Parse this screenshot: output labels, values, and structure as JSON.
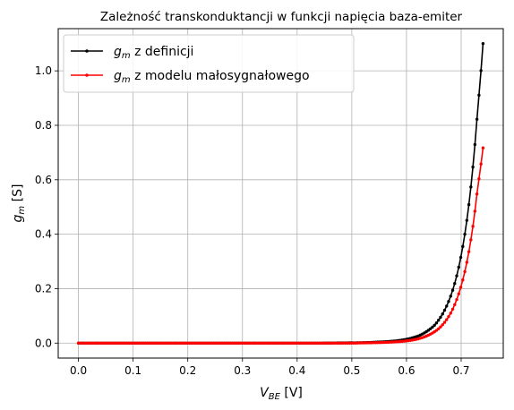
{
  "chart_data": {
    "type": "line",
    "title": "Zależność transkonduktancji w funkcji napięcia baza-emiter",
    "xlabel": {
      "base": "V",
      "sub": "BE",
      "unit": " [V]"
    },
    "ylabel": {
      "base": "g",
      "sub": "m",
      "unit": " [S]"
    },
    "xlim": [
      -0.037,
      0.777
    ],
    "ylim": [
      -0.055,
      1.155
    ],
    "xticks": [
      0.0,
      0.1,
      0.2,
      0.3,
      0.4,
      0.5,
      0.6,
      0.7
    ],
    "xtick_labels": [
      "0.0",
      "0.1",
      "0.2",
      "0.3",
      "0.4",
      "0.5",
      "0.6",
      "0.7"
    ],
    "yticks": [
      0.0,
      0.2,
      0.4,
      0.6,
      0.8,
      1.0
    ],
    "ytick_labels": [
      "0.0",
      "0.2",
      "0.4",
      "0.6",
      "0.8",
      "1.0"
    ],
    "grid": true,
    "legend_position": "top-left",
    "x": [
      0.0,
      0.05,
      0.1,
      0.15,
      0.2,
      0.25,
      0.3,
      0.35,
      0.4,
      0.45,
      0.5,
      0.55,
      0.575,
      0.6,
      0.62,
      0.64,
      0.65,
      0.66,
      0.67,
      0.68,
      0.69,
      0.7,
      0.71,
      0.72,
      0.73,
      0.74
    ],
    "series": [
      {
        "name_base": "g",
        "name_sub": "m",
        "name_rest": " z definicji",
        "color": "#000000",
        "values": [
          0.0,
          0.0,
          0.0,
          0.0,
          0.0,
          0.0,
          0.0,
          0.0,
          0.0,
          0.0,
          0.001,
          0.004,
          0.007,
          0.014,
          0.025,
          0.047,
          0.063,
          0.088,
          0.122,
          0.168,
          0.232,
          0.322,
          0.445,
          0.616,
          0.852,
          1.1
        ]
      },
      {
        "name_base": "g",
        "name_sub": "m",
        "name_rest": " z modelu małosygnałowego",
        "color": "#ff0000",
        "values": [
          0.0,
          0.0,
          0.0,
          0.0,
          0.0,
          0.0,
          0.0,
          0.0,
          0.0,
          0.0,
          0.0,
          0.002,
          0.004,
          0.008,
          0.015,
          0.029,
          0.04,
          0.055,
          0.077,
          0.107,
          0.15,
          0.21,
          0.293,
          0.408,
          0.568,
          0.717
        ]
      }
    ]
  }
}
